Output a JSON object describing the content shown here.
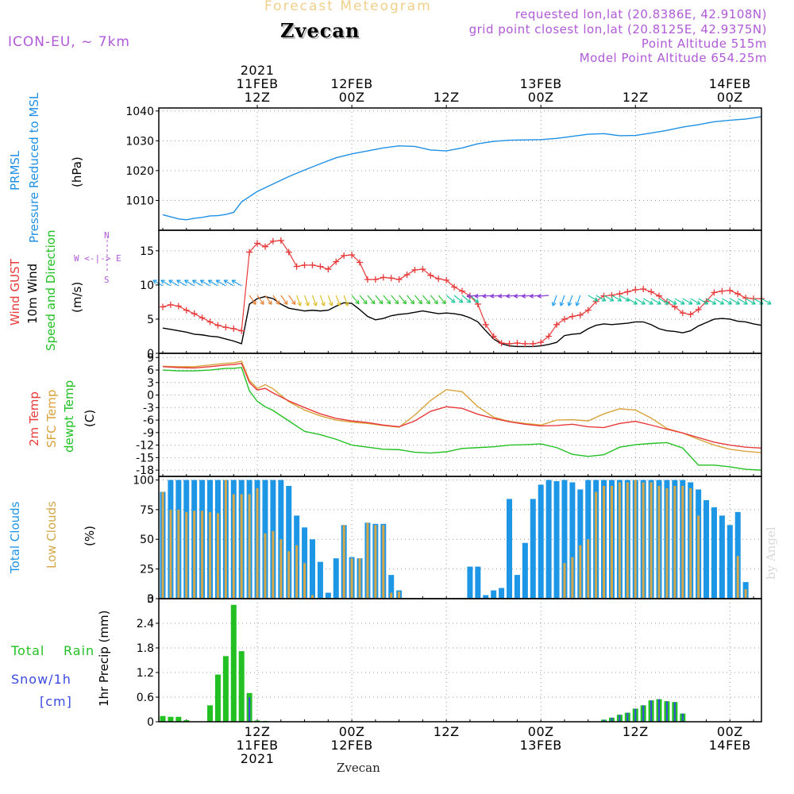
{
  "header": {
    "super_title": "Forecast Meteogram",
    "location": "Zvecan",
    "model": "ICON-EU, ~ 7km",
    "requested": "requested lon,lat (20.8386E, 42.9108N)",
    "closest": "grid point closest lon,lat (20.8125E, 42.9375N)",
    "point_alt": "Point Altitude 515m",
    "model_alt": "Model Point Altitude 654.25m",
    "footer_location": "Zvecan",
    "watermark": "by Angel"
  },
  "colors": {
    "pressure": "#1e90e6",
    "gust": "#e83a3a",
    "wind": "#000000",
    "temp": "#e83a3a",
    "sfc": "#d9a23a",
    "dewpt": "#22c022",
    "total_clouds": "#1e96e6",
    "low_clouds": "#d4a84a",
    "rain": "#22c022",
    "snow": "#3a4ae0",
    "legend_purple": "#b05ad8"
  },
  "time_axis": {
    "top_ticks": [
      {
        "h": 12,
        "lines": [
          "2021",
          "11FEB",
          "12Z"
        ]
      },
      {
        "h": 24,
        "lines": [
          "12FEB",
          "00Z"
        ]
      },
      {
        "h": 36,
        "lines": [
          "12Z"
        ]
      },
      {
        "h": 48,
        "lines": [
          "13FEB",
          "00Z"
        ]
      },
      {
        "h": 60,
        "lines": [
          "12Z"
        ]
      },
      {
        "h": 72,
        "lines": [
          "14FEB",
          "00Z"
        ]
      }
    ],
    "bottom_ticks": [
      {
        "h": 12,
        "lines": [
          "12Z",
          "11FEB",
          "2021"
        ]
      },
      {
        "h": 24,
        "lines": [
          "00Z",
          "12FEB"
        ]
      },
      {
        "h": 36,
        "lines": [
          "12Z"
        ]
      },
      {
        "h": 48,
        "lines": [
          "00Z",
          "13FEB"
        ]
      },
      {
        "h": 60,
        "lines": [
          "12Z"
        ]
      },
      {
        "h": 72,
        "lines": [
          "00Z",
          "14FEB"
        ]
      }
    ]
  },
  "labels": {
    "pressure": [
      "PRMSL",
      "Pressure Reduced to MSL",
      "(hPa)"
    ],
    "wind": [
      "Wind GUST",
      "10m Wind",
      "Speed and Direction",
      "(m/s)"
    ],
    "compass": [
      "N",
      "W <-|-> E",
      "S"
    ],
    "temp": [
      "2m Temp",
      "SFC Temp",
      "dewpt Temp",
      "(C)"
    ],
    "clouds": [
      "Total Clouds",
      "Low Clouds",
      "(%)"
    ],
    "precip": [
      "Total",
      "Rain",
      "Snow/1h",
      "[cm]",
      "1hr Precip (mm)"
    ]
  },
  "chart_data": [
    {
      "type": "line",
      "name": "pressure",
      "title": "PRMSL Pressure Reduced to MSL",
      "ylabel": "(hPa)",
      "ylim": [
        1000,
        1041
      ],
      "yticks": [
        1010,
        1020,
        1030,
        1040
      ],
      "x_hours": [
        0,
        1,
        2,
        3,
        4,
        5,
        6,
        7,
        8,
        9,
        10,
        12,
        14,
        16,
        18,
        20,
        22,
        24,
        26,
        28,
        30,
        32,
        34,
        36,
        38,
        40,
        42,
        44,
        46,
        48,
        50,
        52,
        54,
        56,
        58,
        60,
        62,
        64,
        66,
        68,
        70,
        72,
        74,
        76
      ],
      "series": [
        {
          "name": "PRMSL",
          "values": [
            1005.2,
            1004.5,
            1003.8,
            1003.5,
            1004.0,
            1004.3,
            1004.8,
            1004.9,
            1005.3,
            1006.0,
            1009.5,
            1013.0,
            1015.5,
            1018.0,
            1020.2,
            1022.3,
            1024.3,
            1025.6,
            1026.6,
            1027.6,
            1028.3,
            1028.1,
            1026.9,
            1026.6,
            1027.6,
            1029.0,
            1029.8,
            1030.2,
            1030.3,
            1030.4,
            1030.8,
            1031.5,
            1032.2,
            1032.4,
            1031.7,
            1031.8,
            1032.6,
            1033.5,
            1034.6,
            1035.4,
            1036.4,
            1036.9,
            1037.3,
            1038.1
          ]
        }
      ]
    },
    {
      "type": "line",
      "name": "wind",
      "title": "Wind GUST / 10m Wind Speed and Direction",
      "ylabel": "(m/s)",
      "ylim": [
        0,
        18
      ],
      "yticks": [
        0,
        5,
        10,
        15
      ],
      "x_hours": [
        0,
        1,
        2,
        3,
        4,
        5,
        6,
        7,
        8,
        9,
        10,
        11,
        12,
        13,
        14,
        15,
        16,
        17,
        18,
        19,
        20,
        21,
        22,
        23,
        24,
        25,
        26,
        27,
        28,
        29,
        30,
        31,
        32,
        33,
        34,
        35,
        36,
        37,
        38,
        39,
        40,
        41,
        42,
        43,
        44,
        45,
        46,
        47,
        48,
        49,
        50,
        51,
        52,
        53,
        54,
        55,
        56,
        57,
        58,
        59,
        60,
        61,
        62,
        63,
        64,
        65,
        66,
        67,
        68,
        69,
        70,
        71,
        72,
        73,
        74,
        75,
        76
      ],
      "series": [
        {
          "name": "Wind GUST",
          "values": [
            6.8,
            7.1,
            6.9,
            6.3,
            5.8,
            5.2,
            4.6,
            4.1,
            3.8,
            3.6,
            3.3,
            14.8,
            16.1,
            15.6,
            16.4,
            16.5,
            14.8,
            12.7,
            12.9,
            12.9,
            12.7,
            12.3,
            13.4,
            14.3,
            14.4,
            13.3,
            10.8,
            10.8,
            11.1,
            11.0,
            10.8,
            11.5,
            12.2,
            12.3,
            11.4,
            10.9,
            10.7,
            9.7,
            9.1,
            8.4,
            7.2,
            4.2,
            2.5,
            1.5,
            1.4,
            1.5,
            1.4,
            1.4,
            1.6,
            2.5,
            4.2,
            5.0,
            5.4,
            5.6,
            6.3,
            7.6,
            8.4,
            8.5,
            8.7,
            9.0,
            9.3,
            9.4,
            9.0,
            8.4,
            7.5,
            6.8,
            5.9,
            5.7,
            6.4,
            7.6,
            8.9,
            9.1,
            9.2,
            8.7,
            8.1,
            8.0,
            8.0
          ]
        },
        {
          "name": "10m Wind",
          "values": [
            3.7,
            3.5,
            3.3,
            3.1,
            2.8,
            2.7,
            2.5,
            2.4,
            2.1,
            1.8,
            1.4,
            7.2,
            8.0,
            8.3,
            8.0,
            7.2,
            6.6,
            6.4,
            6.2,
            6.3,
            6.2,
            6.3,
            6.9,
            7.4,
            7.3,
            6.4,
            5.4,
            4.9,
            5.1,
            5.5,
            5.7,
            5.8,
            6.0,
            6.2,
            6.0,
            5.8,
            5.9,
            5.8,
            5.6,
            5.2,
            4.6,
            3.3,
            2.1,
            1.4,
            1.1,
            1.0,
            1.0,
            1.0,
            1.1,
            1.3,
            1.6,
            2.6,
            2.8,
            2.9,
            3.6,
            4.1,
            4.3,
            4.2,
            4.3,
            4.4,
            4.6,
            4.6,
            4.2,
            3.6,
            3.3,
            3.2,
            3.0,
            3.3,
            4.0,
            4.5,
            5.0,
            5.1,
            5.0,
            4.7,
            4.6,
            4.3,
            4.1
          ]
        }
      ]
    },
    {
      "type": "line",
      "name": "temperature",
      "title": "2m Temp / SFC Temp / dewpt Temp",
      "ylabel": "(C)",
      "ylim": [
        -19.5,
        10
      ],
      "yticks": [
        -18,
        -15,
        -12,
        -9,
        -6,
        -3,
        0,
        3,
        6,
        9
      ],
      "x_hours": [
        0,
        2,
        4,
        6,
        8,
        9,
        10,
        11,
        12,
        13,
        14,
        16,
        18,
        20,
        22,
        24,
        26,
        28,
        30,
        32,
        34,
        36,
        38,
        40,
        42,
        44,
        46,
        48,
        50,
        52,
        54,
        56,
        58,
        60,
        62,
        64,
        66,
        68,
        70,
        72,
        74,
        76
      ],
      "series": [
        {
          "name": "2m Temp",
          "values": [
            6.8,
            6.6,
            6.5,
            6.8,
            7.2,
            7.3,
            7.6,
            3.0,
            1.2,
            1.6,
            0.5,
            -1.4,
            -3.0,
            -4.5,
            -5.6,
            -6.2,
            -6.6,
            -7.2,
            -7.6,
            -6.2,
            -3.9,
            -2.8,
            -3.2,
            -4.6,
            -5.6,
            -6.4,
            -7.0,
            -7.4,
            -7.3,
            -7.0,
            -7.6,
            -7.8,
            -6.8,
            -6.3,
            -7.2,
            -8.2,
            -9.1,
            -10.2,
            -11.3,
            -12.0,
            -12.5,
            -12.7
          ]
        },
        {
          "name": "SFC Temp",
          "values": [
            6.9,
            6.8,
            6.8,
            7.2,
            7.6,
            7.7,
            8.1,
            3.5,
            1.6,
            2.5,
            1.5,
            -1.6,
            -3.6,
            -5.0,
            -6.0,
            -6.5,
            -6.8,
            -7.3,
            -7.7,
            -4.8,
            -1.3,
            1.3,
            0.8,
            -2.8,
            -5.3,
            -6.3,
            -6.8,
            -7.2,
            -6.0,
            -5.9,
            -6.2,
            -4.5,
            -3.3,
            -3.6,
            -5.5,
            -8.0,
            -9.1,
            -10.6,
            -12.0,
            -13.0,
            -13.5,
            -13.8
          ]
        },
        {
          "name": "dewpt Temp",
          "values": [
            6.0,
            5.8,
            5.8,
            6.0,
            6.4,
            6.4,
            6.6,
            1.0,
            -1.5,
            -2.8,
            -3.7,
            -6.2,
            -8.7,
            -9.5,
            -10.6,
            -12.0,
            -12.5,
            -13.0,
            -13.1,
            -13.7,
            -13.9,
            -13.6,
            -12.8,
            -12.6,
            -12.4,
            -12.0,
            -11.9,
            -11.7,
            -12.6,
            -14.2,
            -14.7,
            -14.3,
            -12.5,
            -11.9,
            -11.6,
            -11.4,
            -12.7,
            -16.8,
            -16.8,
            -17.2,
            -17.8,
            -18.0
          ]
        }
      ]
    },
    {
      "type": "bar",
      "name": "clouds",
      "title": "Total Clouds / Low Clouds",
      "ylabel": "(%)",
      "ylim": [
        0,
        103
      ],
      "yticks": [
        0,
        25,
        50,
        75,
        100
      ],
      "x_hours": [
        0,
        1,
        2,
        3,
        4,
        5,
        6,
        7,
        8,
        9,
        10,
        11,
        12,
        13,
        14,
        15,
        16,
        17,
        18,
        19,
        20,
        21,
        22,
        23,
        24,
        25,
        26,
        27,
        28,
        29,
        30,
        31,
        32,
        33,
        34,
        35,
        36,
        37,
        38,
        39,
        40,
        41,
        42,
        43,
        44,
        45,
        46,
        47,
        48,
        49,
        50,
        51,
        52,
        53,
        54,
        55,
        56,
        57,
        58,
        59,
        60,
        61,
        62,
        63,
        64,
        65,
        66,
        67,
        68,
        69,
        70,
        71,
        72,
        73,
        74,
        75,
        76
      ],
      "series": [
        {
          "name": "Total Clouds",
          "values": [
            90,
            100,
            100,
            100,
            100,
            100,
            100,
            100,
            100,
            100,
            100,
            100,
            100,
            100,
            100,
            100,
            95,
            70,
            60,
            50,
            31,
            5,
            34,
            62,
            35,
            34,
            64,
            63,
            63,
            20,
            7,
            0,
            0,
            0,
            0,
            0,
            0,
            0,
            0,
            27,
            27,
            3,
            7,
            9,
            84,
            20,
            47,
            84,
            96,
            100,
            99,
            100,
            98,
            92,
            100,
            100,
            100,
            100,
            100,
            100,
            100,
            100,
            100,
            100,
            100,
            100,
            100,
            98,
            92,
            83,
            77,
            70,
            62,
            73,
            14,
            0,
            0
          ]
        },
        {
          "name": "Low Clouds",
          "values": [
            90,
            75,
            75,
            73,
            74,
            74,
            73,
            72,
            100,
            88,
            88,
            88,
            93,
            55,
            57,
            50,
            40,
            45,
            30,
            3,
            0,
            0,
            0,
            62,
            34,
            34,
            64,
            62,
            62,
            5,
            6,
            0,
            0,
            0,
            0,
            0,
            0,
            0,
            0,
            0,
            0,
            0,
            0,
            0,
            0,
            0,
            0,
            0,
            0,
            0,
            0,
            30,
            35,
            45,
            50,
            90,
            95,
            95,
            98,
            98,
            100,
            98,
            98,
            95,
            93,
            95,
            95,
            93,
            70,
            0,
            0,
            0,
            0,
            36,
            8,
            0,
            0
          ]
        }
      ]
    },
    {
      "type": "bar",
      "name": "precipitation",
      "title": "1hr Precip (mm)",
      "ylabel": "1hr Precip (mm)",
      "ylim": [
        0,
        3.0
      ],
      "yticks": [
        0,
        0.6,
        1.2,
        1.8,
        2.4,
        3
      ],
      "x_hours": [
        0,
        1,
        2,
        3,
        4,
        5,
        6,
        7,
        8,
        9,
        10,
        11,
        12,
        13,
        14,
        15,
        16,
        17,
        18,
        19,
        20,
        21,
        22,
        23,
        24,
        25,
        26,
        27,
        28,
        29,
        30,
        31,
        32,
        33,
        34,
        35,
        36,
        37,
        38,
        39,
        40,
        41,
        42,
        43,
        44,
        45,
        46,
        47,
        48,
        49,
        50,
        51,
        52,
        53,
        54,
        55,
        56,
        57,
        58,
        59,
        60,
        61,
        62,
        63,
        64,
        65,
        66,
        67,
        68,
        69,
        70,
        71,
        72,
        73,
        74,
        75,
        76
      ],
      "series": [
        {
          "name": "Total Rain",
          "values": [
            0.14,
            0.12,
            0.12,
            0.04,
            0,
            0,
            0.4,
            1.15,
            1.6,
            2.85,
            1.72,
            0.7,
            0.03,
            0.02,
            0,
            0,
            0,
            0,
            0,
            0,
            0,
            0,
            0,
            0,
            0,
            0,
            0,
            0,
            0,
            0,
            0,
            0,
            0,
            0,
            0,
            0,
            0,
            0,
            0,
            0,
            0,
            0,
            0,
            0,
            0,
            0,
            0,
            0,
            0,
            0,
            0,
            0,
            0,
            0,
            0,
            0,
            0.05,
            0.1,
            0.17,
            0.22,
            0.32,
            0.4,
            0.52,
            0.55,
            0.5,
            0.48,
            0.2,
            0,
            0,
            0,
            0,
            0,
            0,
            0,
            0,
            0,
            0
          ]
        },
        {
          "name": "Snow/1h",
          "values": [
            0,
            0,
            0,
            0,
            0,
            0,
            0,
            0,
            0,
            0,
            0,
            0.6,
            0,
            0,
            0,
            0,
            0,
            0,
            0,
            0,
            0,
            0,
            0,
            0,
            0,
            0,
            0,
            0,
            0,
            0,
            0,
            0,
            0,
            0,
            0,
            0,
            0,
            0,
            0,
            0,
            0,
            0,
            0,
            0,
            0,
            0,
            0,
            0,
            0,
            0,
            0,
            0,
            0,
            0,
            0,
            0,
            0.05,
            0.1,
            0.17,
            0.22,
            0.32,
            0.4,
            0.52,
            0.55,
            0.5,
            0.48,
            0.2,
            0,
            0,
            0,
            0,
            0,
            0,
            0,
            0,
            0,
            0
          ]
        }
      ]
    }
  ]
}
